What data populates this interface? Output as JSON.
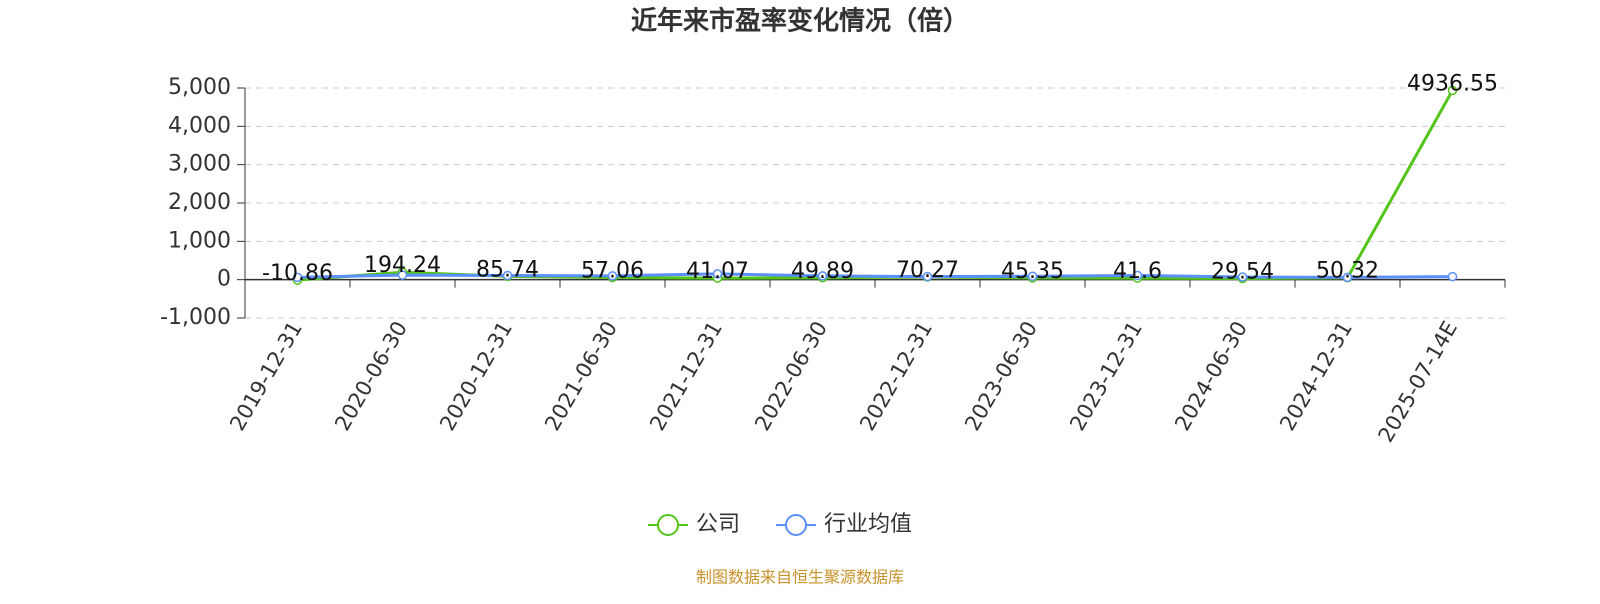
{
  "chart_data": {
    "type": "line",
    "title": "近年来市盈率变化情况（倍）",
    "footer": "制图数据来自恒生聚源数据库",
    "categories": [
      "2019-12-31",
      "2020-06-30",
      "2020-12-31",
      "2021-06-30",
      "2021-12-31",
      "2022-06-30",
      "2022-12-31",
      "2023-06-30",
      "2023-12-31",
      "2024-06-30",
      "2024-12-31",
      "2025-07-14E"
    ],
    "series": [
      {
        "name": "公司",
        "color": "#52c41a",
        "show_labels": true,
        "values": [
          -10.86,
          194.24,
          85.74,
          57.06,
          41.07,
          49.89,
          70.27,
          45.35,
          41.6,
          29.54,
          50.32,
          4936.55
        ]
      },
      {
        "name": "行业均值",
        "color": "#5b8ff9",
        "show_labels": false,
        "values": [
          60,
          120,
          110,
          100,
          150,
          100,
          80,
          90,
          110,
          70,
          60,
          80
        ]
      }
    ],
    "ylim": [
      -1000,
      5000
    ],
    "yticks": [
      {
        "value": -1000,
        "label": "-1,000"
      },
      0,
      {
        "value": 1000,
        "label": "1,000"
      },
      {
        "value": 2000,
        "label": "2,000"
      },
      {
        "value": 3000,
        "label": "3,000"
      },
      {
        "value": 4000,
        "label": "4,000"
      },
      {
        "value": 5000,
        "label": "5,000"
      }
    ],
    "grid": true,
    "legend": "bottom"
  }
}
